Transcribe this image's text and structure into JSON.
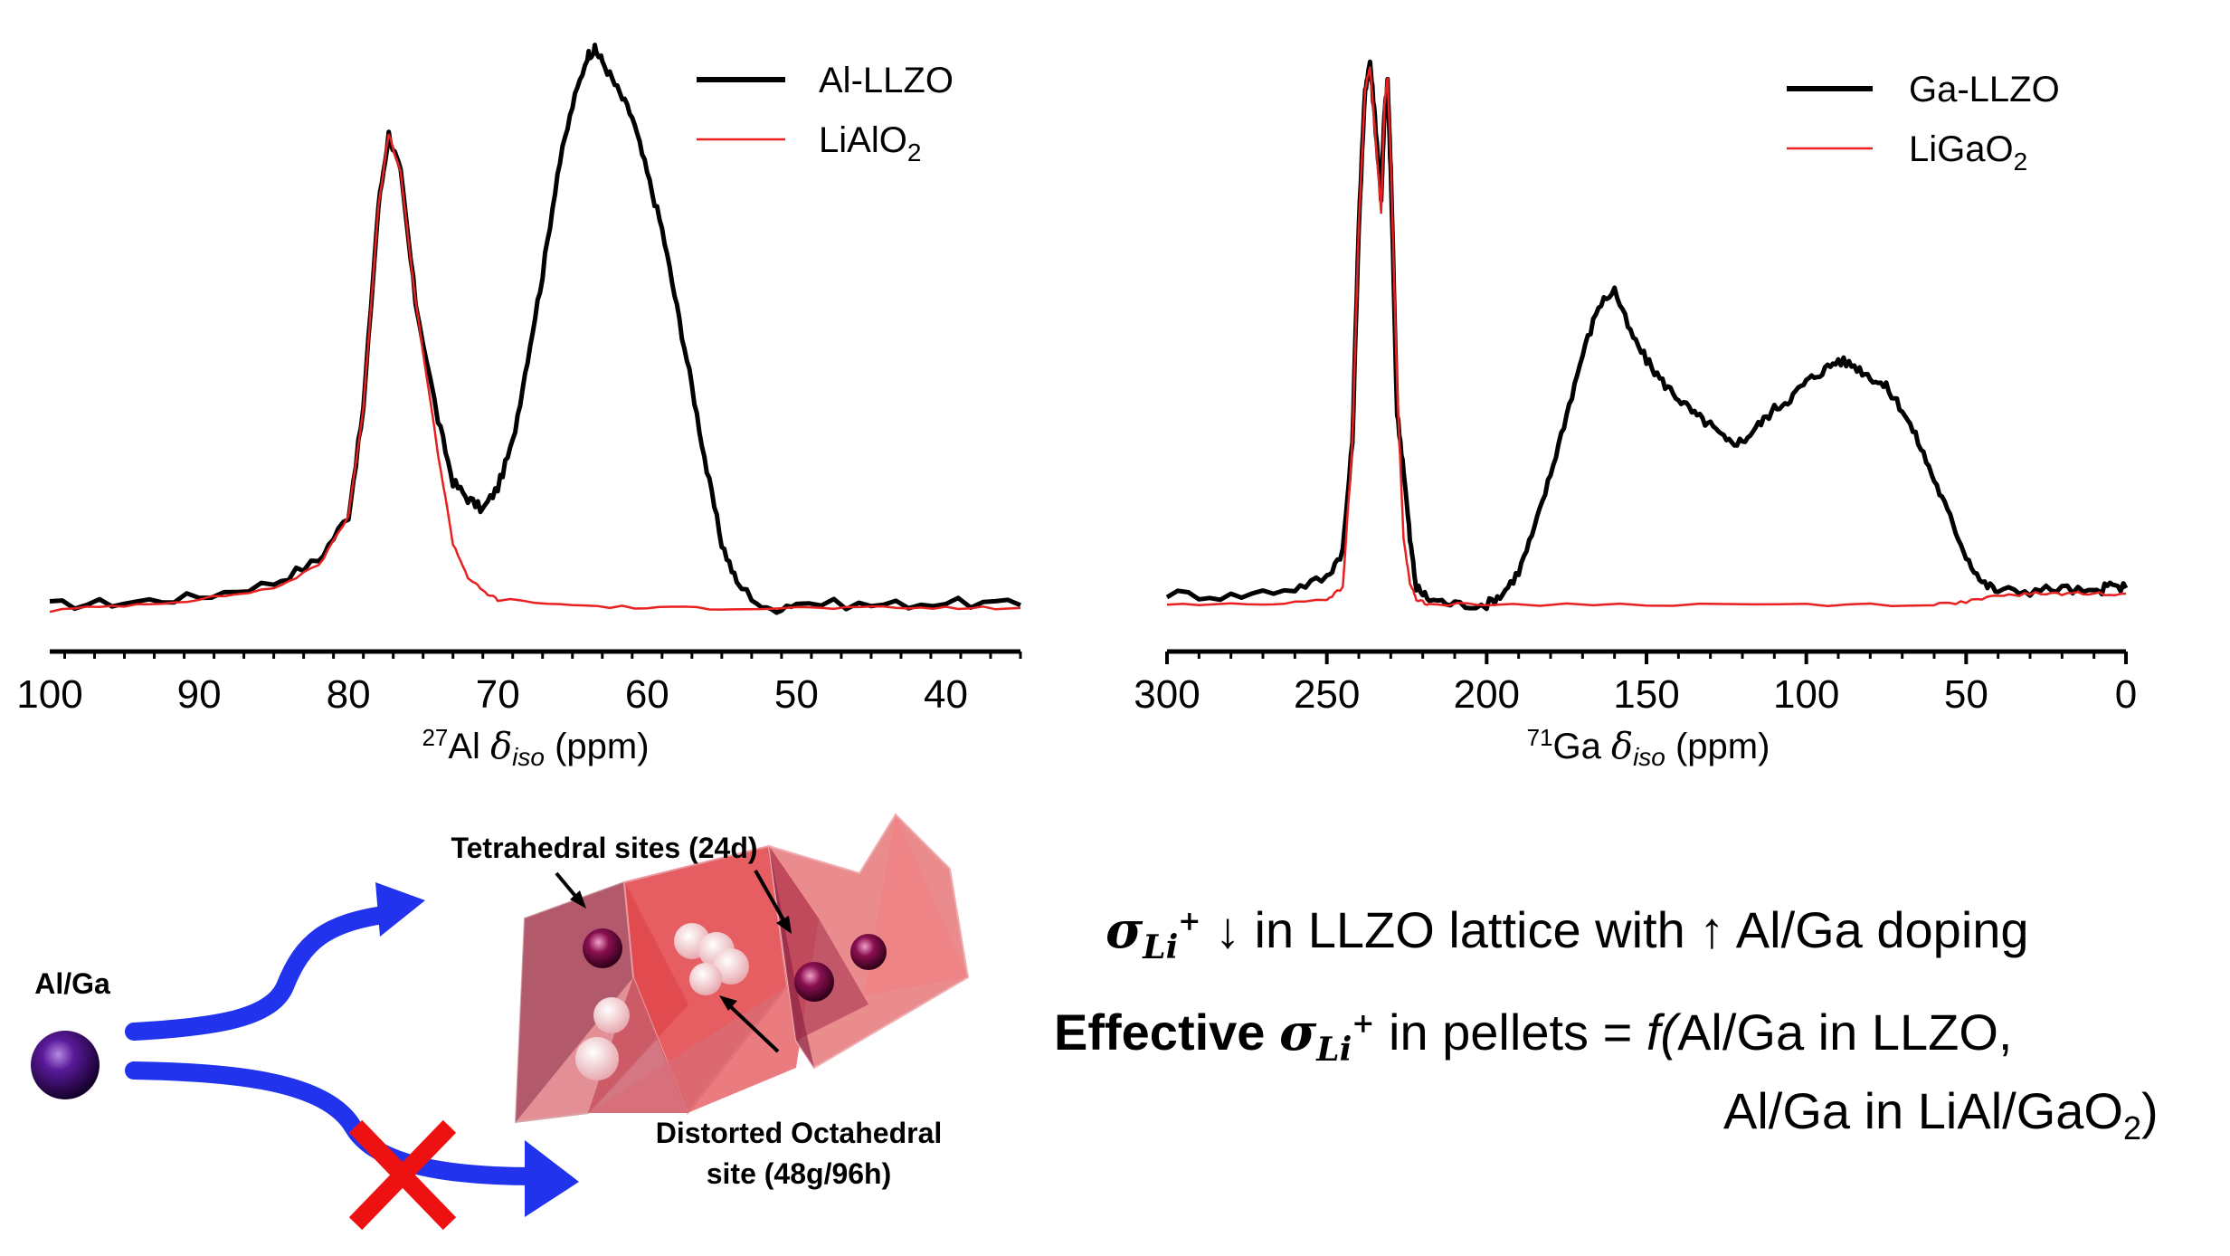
{
  "chart_data": [
    {
      "type": "line",
      "xlabel_prefix": "27",
      "xlabel_element": "Al",
      "xlabel_symbol": "δ",
      "xlabel_sub": "iso",
      "xlabel_unit": "(ppm)",
      "xlim": [
        100,
        35
      ],
      "xticks": [
        100,
        90,
        80,
        70,
        60,
        50,
        40
      ],
      "y_axis_shown": false,
      "legend_position": "top-right",
      "series": [
        {
          "name": "Al-LLZO",
          "sub": "",
          "color": "#000000",
          "points": [
            [
              100,
              0.01
            ],
            [
              95,
              0.015
            ],
            [
              90,
              0.025
            ],
            [
              85,
              0.05
            ],
            [
              82,
              0.09
            ],
            [
              80,
              0.17
            ],
            [
              79,
              0.36
            ],
            [
              78,
              0.72
            ],
            [
              77.3,
              0.85
            ],
            [
              76.5,
              0.78
            ],
            [
              75.5,
              0.55
            ],
            [
              74,
              0.34
            ],
            [
              73,
              0.23
            ],
            [
              72,
              0.2
            ],
            [
              71,
              0.18
            ],
            [
              70,
              0.22
            ],
            [
              69,
              0.3
            ],
            [
              68,
              0.45
            ],
            [
              67,
              0.6
            ],
            [
              66,
              0.78
            ],
            [
              65,
              0.9
            ],
            [
              64,
              0.99
            ],
            [
              63.5,
              1.0
            ],
            [
              63,
              0.98
            ],
            [
              62,
              0.93
            ],
            [
              61,
              0.88
            ],
            [
              60,
              0.78
            ],
            [
              59,
              0.68
            ],
            [
              58,
              0.54
            ],
            [
              57,
              0.4
            ],
            [
              56,
              0.25
            ],
            [
              55,
              0.12
            ],
            [
              54,
              0.05
            ],
            [
              52,
              0.0
            ],
            [
              50,
              0.015
            ],
            [
              45,
              0.01
            ],
            [
              40,
              0.015
            ],
            [
              35,
              0.01
            ]
          ]
        },
        {
          "name": "LiAlO",
          "sub": "2",
          "color": "#e82020",
          "points": [
            [
              100,
              0.0
            ],
            [
              95,
              0.01
            ],
            [
              90,
              0.02
            ],
            [
              85,
              0.04
            ],
            [
              82,
              0.08
            ],
            [
              80,
              0.17
            ],
            [
              79,
              0.36
            ],
            [
              78,
              0.72
            ],
            [
              77.3,
              0.85
            ],
            [
              76.5,
              0.78
            ],
            [
              75.5,
              0.55
            ],
            [
              74,
              0.28
            ],
            [
              73,
              0.12
            ],
            [
              72,
              0.06
            ],
            [
              71,
              0.035
            ],
            [
              70,
              0.02
            ],
            [
              65,
              0.01
            ],
            [
              60,
              0.005
            ],
            [
              55,
              0.005
            ],
            [
              50,
              0.005
            ],
            [
              45,
              0.005
            ],
            [
              40,
              0.005
            ],
            [
              35,
              0.005
            ]
          ]
        }
      ]
    },
    {
      "type": "line",
      "xlabel_prefix": "71",
      "xlabel_element": "Ga",
      "xlabel_symbol": "δ",
      "xlabel_sub": "iso",
      "xlabel_unit": "(ppm)",
      "xlim": [
        300,
        0
      ],
      "xticks": [
        300,
        250,
        200,
        150,
        100,
        50,
        0
      ],
      "y_axis_shown": false,
      "legend_position": "top-right",
      "series": [
        {
          "name": "Ga-LLZO",
          "sub": "",
          "color": "#000000",
          "points": [
            [
              300,
              0.02
            ],
            [
              280,
              0.015
            ],
            [
              260,
              0.03
            ],
            [
              250,
              0.05
            ],
            [
              245,
              0.1
            ],
            [
              242,
              0.3
            ],
            [
              240,
              0.7
            ],
            [
              238,
              0.95
            ],
            [
              236.5,
              1.0
            ],
            [
              235,
              0.9
            ],
            [
              233,
              0.75
            ],
            [
              232,
              0.9
            ],
            [
              231,
              0.96
            ],
            [
              230,
              0.8
            ],
            [
              228,
              0.35
            ],
            [
              226,
              0.25
            ],
            [
              224,
              0.12
            ],
            [
              222,
              0.03
            ],
            [
              218,
              0.01
            ],
            [
              210,
              0.0
            ],
            [
              200,
              0.0
            ],
            [
              195,
              0.02
            ],
            [
              190,
              0.06
            ],
            [
              185,
              0.14
            ],
            [
              180,
              0.24
            ],
            [
              175,
              0.35
            ],
            [
              170,
              0.46
            ],
            [
              165,
              0.55
            ],
            [
              160,
              0.58
            ],
            [
              155,
              0.5
            ],
            [
              150,
              0.45
            ],
            [
              145,
              0.41
            ],
            [
              140,
              0.38
            ],
            [
              135,
              0.35
            ],
            [
              130,
              0.33
            ],
            [
              125,
              0.3
            ],
            [
              120,
              0.3
            ],
            [
              115,
              0.33
            ],
            [
              110,
              0.36
            ],
            [
              105,
              0.38
            ],
            [
              100,
              0.41
            ],
            [
              95,
              0.43
            ],
            [
              90,
              0.45
            ],
            [
              85,
              0.44
            ],
            [
              80,
              0.42
            ],
            [
              75,
              0.4
            ],
            [
              70,
              0.36
            ],
            [
              65,
              0.3
            ],
            [
              60,
              0.23
            ],
            [
              55,
              0.16
            ],
            [
              50,
              0.09
            ],
            [
              45,
              0.04
            ],
            [
              40,
              0.025
            ],
            [
              30,
              0.025
            ],
            [
              20,
              0.03
            ],
            [
              10,
              0.02
            ],
            [
              5,
              0.035
            ],
            [
              0,
              0.03
            ]
          ]
        },
        {
          "name": "LiGaO",
          "sub": "2",
          "color": "#e82020",
          "points": [
            [
              300,
              0.0
            ],
            [
              270,
              0.0
            ],
            [
              250,
              0.01
            ],
            [
              245,
              0.03
            ],
            [
              242,
              0.3
            ],
            [
              240,
              0.7
            ],
            [
              238,
              0.95
            ],
            [
              236.5,
              0.99
            ],
            [
              235,
              0.88
            ],
            [
              233,
              0.72
            ],
            [
              232,
              0.92
            ],
            [
              231,
              0.97
            ],
            [
              230,
              0.82
            ],
            [
              228,
              0.4
            ],
            [
              226,
              0.12
            ],
            [
              224,
              0.04
            ],
            [
              222,
              0.01
            ],
            [
              218,
              0.0
            ],
            [
              200,
              0.0
            ],
            [
              150,
              0.0
            ],
            [
              100,
              0.0
            ],
            [
              60,
              0.0
            ],
            [
              50,
              0.005
            ],
            [
              40,
              0.015
            ],
            [
              30,
              0.02
            ],
            [
              20,
              0.02
            ],
            [
              10,
              0.02
            ],
            [
              0,
              0.02
            ]
          ]
        }
      ]
    }
  ],
  "diagram": {
    "dopant_label": "Al/Ga",
    "tetrahedral_label": "Tetrahedral sites (24d)",
    "octahedral_label_line1": "Distorted Octahedral",
    "octahedral_label_line2": "site (48g/96h)",
    "arrow_color": "#2233ee",
    "cross_color": "#ee1111",
    "dopant_color": "#3a0a6a"
  },
  "summary": {
    "line1_sigma": "σ",
    "line1_sub": "Li",
    "line1_sup": "+",
    "line1_text": " ↓ in LLZO lattice with ↑ Al/Ga doping",
    "line2_bold": "Effective ",
    "line2_sigma": "σ",
    "line2_sub": "Li",
    "line2_sup": "+",
    "line2_text_a": " in pellets = ",
    "line2_f": "f(",
    "line2_text_b": "Al/Ga in LLZO,",
    "line3_text": "Al/Ga in LiAl/GaO",
    "line3_sub": "2",
    "line3_close": ")"
  }
}
